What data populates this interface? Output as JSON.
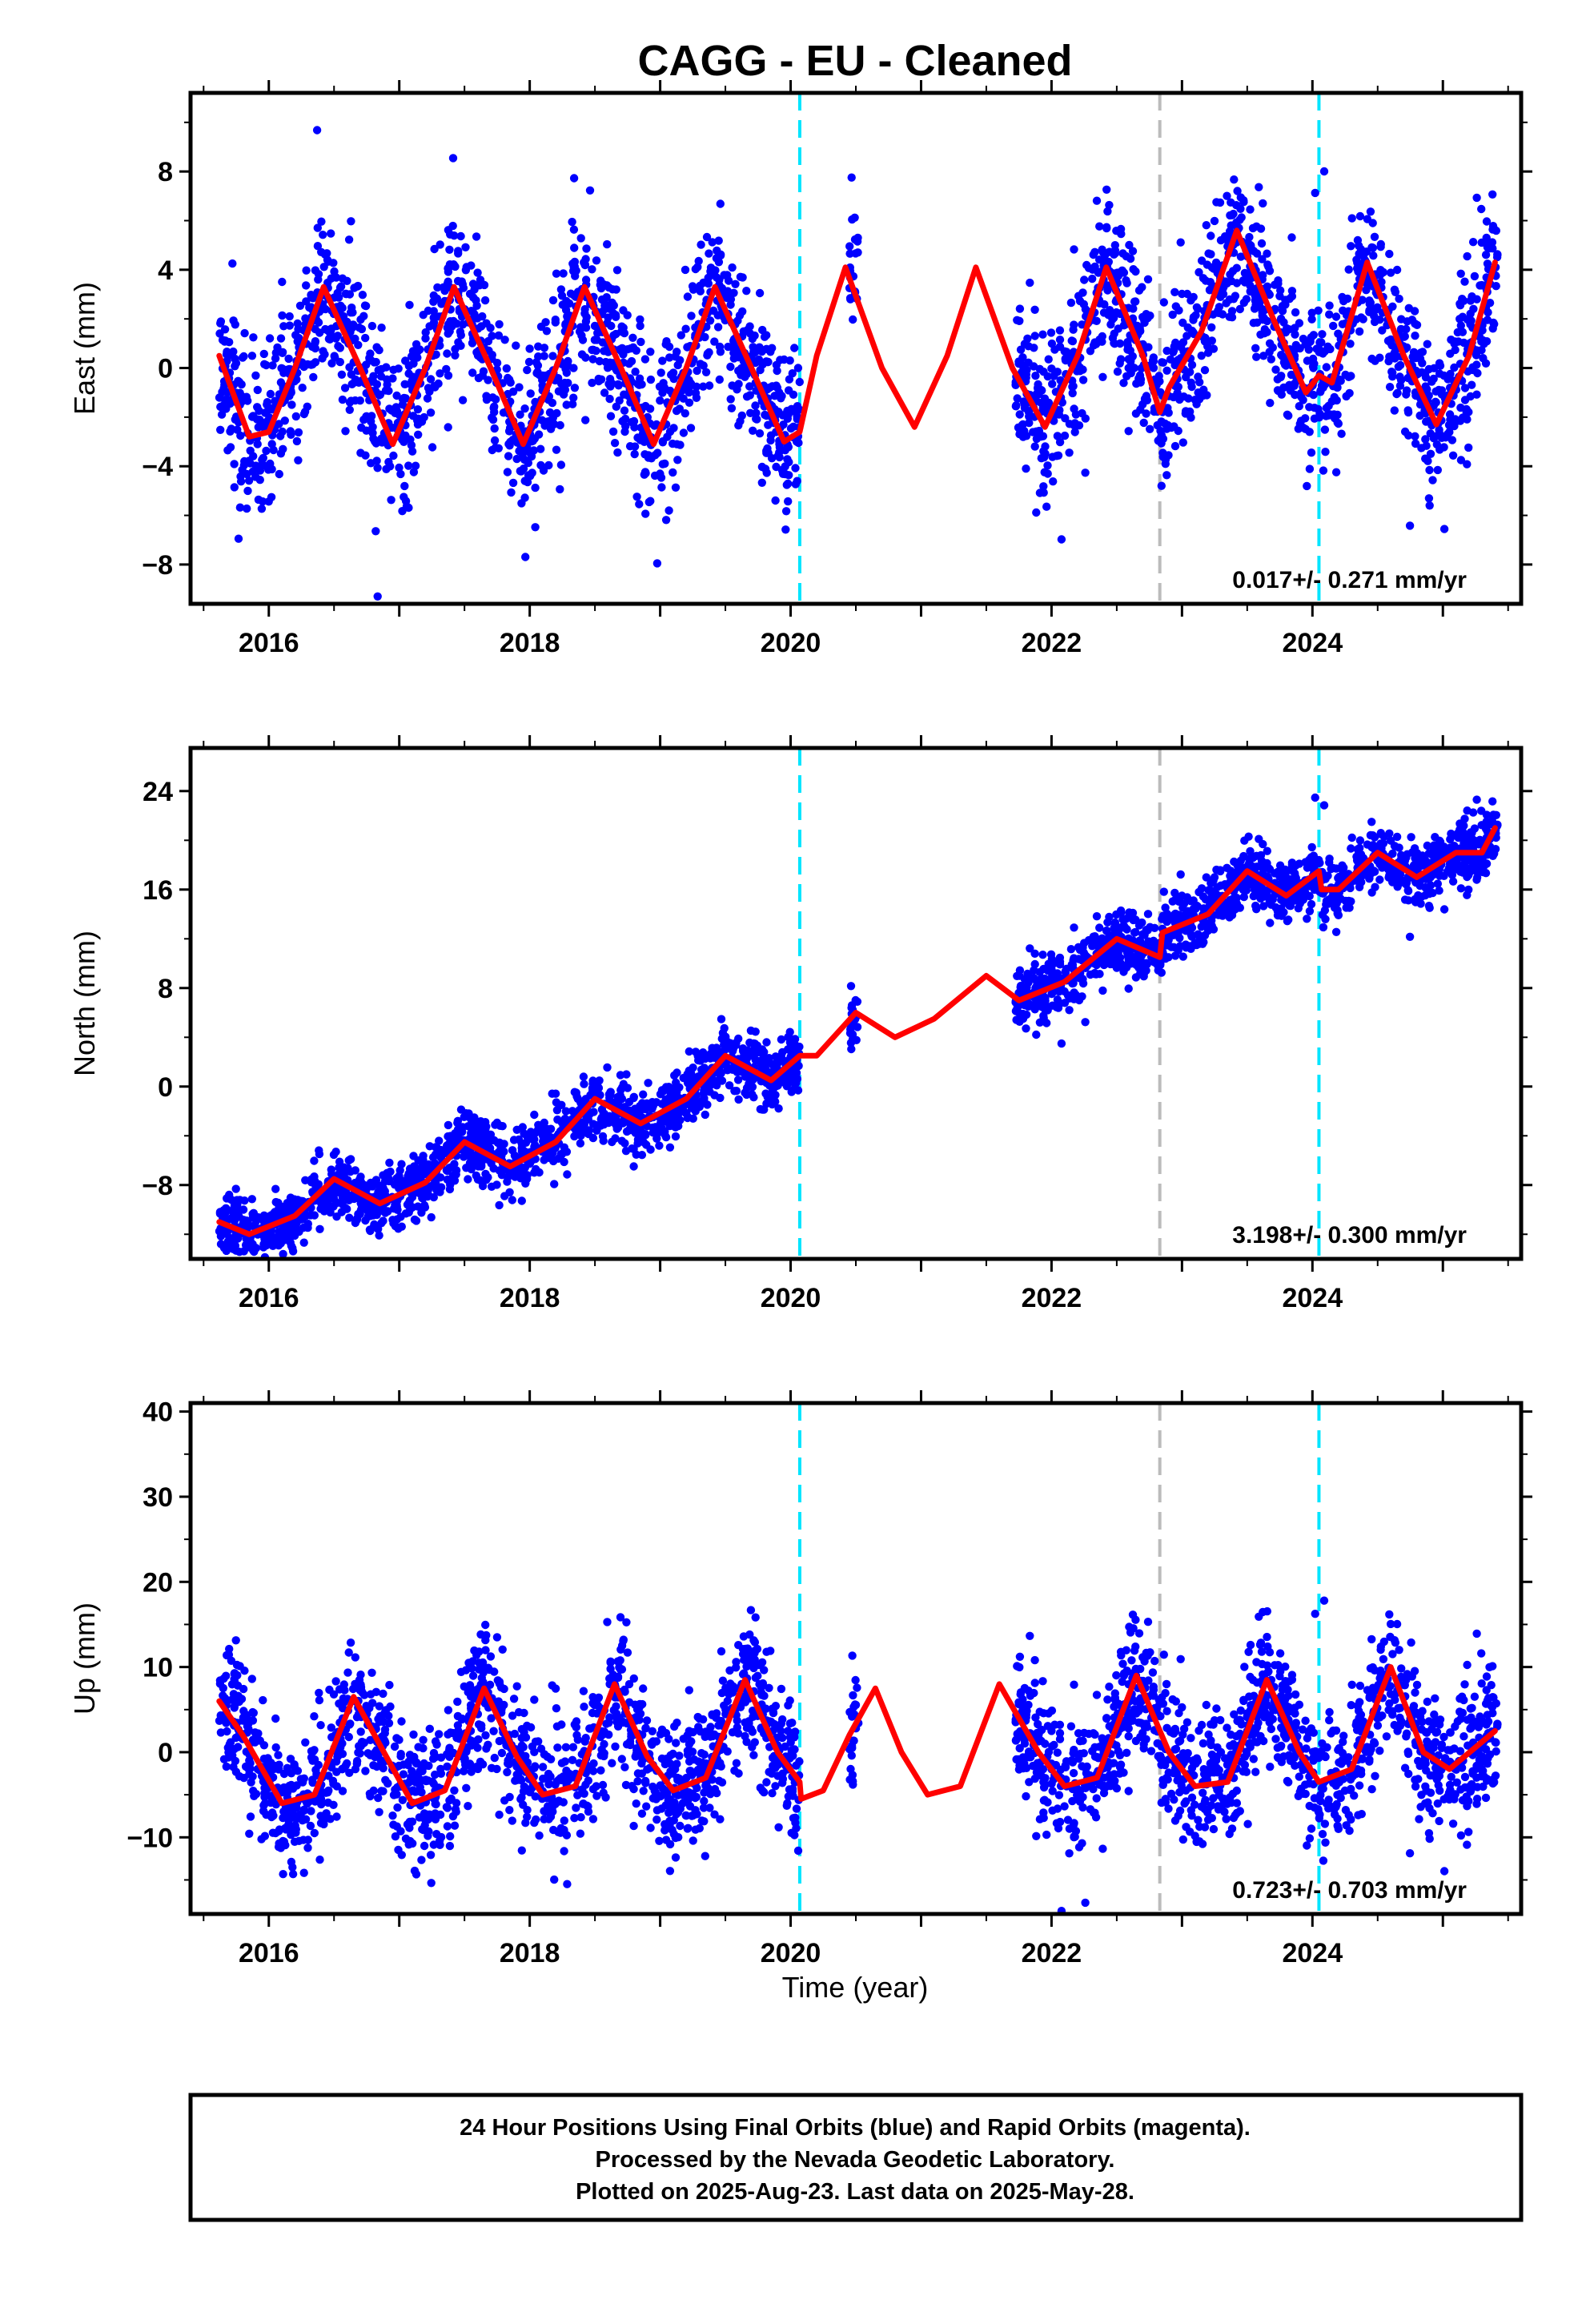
{
  "title": "CAGG  - EU - Cleaned",
  "xlabel": "Time (year)",
  "footer": {
    "lines": [
      "24 Hour Positions Using Final Orbits (blue) and Rapid Orbits (magenta).",
      "Processed by the Nevada Geodetic Laboratory.",
      "Plotted on 2025-Aug-23. Last data on 2025-May-28."
    ]
  },
  "colors": {
    "points": "#0000ff",
    "model": "#ff0000",
    "cyan_line": "#00e5ff",
    "grey_line": "#bbbbbb"
  },
  "chart_data": [
    {
      "type": "scatter",
      "component": "East",
      "ylabel": "East (mm)",
      "rate_text": "0.017+/- 0.271 mm/yr",
      "xlim": [
        2015.4,
        2025.6
      ],
      "ylim": [
        -9.6,
        11.2
      ],
      "yticks": [
        -8,
        -4,
        0,
        4,
        8
      ],
      "xticks": [
        2016,
        2018,
        2020,
        2022,
        2024
      ],
      "cyan_events": [
        2020.07,
        2024.05
      ],
      "grey_events": [
        2022.83
      ],
      "model": {
        "x": [
          2015.62,
          2015.85,
          2016.0,
          2016.2,
          2016.42,
          2016.7,
          2016.95,
          2017.2,
          2017.42,
          2017.7,
          2017.95,
          2018.2,
          2018.42,
          2018.7,
          2018.95,
          2019.2,
          2019.42,
          2019.7,
          2019.95,
          2020.07,
          2020.2,
          2020.42,
          2020.7,
          2020.95,
          2021.2,
          2021.42,
          2021.7,
          2021.95,
          2022.2,
          2022.42,
          2022.7,
          2022.83,
          2022.9,
          2023.15,
          2023.42,
          2023.7,
          2023.95,
          2024.05,
          2024.15,
          2024.42,
          2024.7,
          2024.95,
          2025.2,
          2025.4
        ],
        "y": [
          0.5,
          -2.8,
          -2.6,
          0.0,
          3.3,
          0.0,
          -3.1,
          0.0,
          3.3,
          0.0,
          -3.1,
          0.0,
          3.3,
          0.0,
          -3.1,
          0.0,
          3.3,
          0.0,
          -3.0,
          -2.6,
          0.5,
          4.1,
          0.0,
          -2.4,
          0.5,
          4.1,
          0.0,
          -2.4,
          0.5,
          4.1,
          0.5,
          -1.8,
          -0.8,
          1.5,
          5.6,
          2.0,
          -1.0,
          -0.3,
          -0.6,
          4.3,
          0.5,
          -2.3,
          0.5,
          4.3
        ]
      },
      "scatter": {
        "segments": [
          [
            2015.62,
            2020.07
          ],
          [
            2020.45,
            2020.52
          ],
          [
            2021.72,
            2025.42
          ]
        ],
        "amplitude": 3.2,
        "offset": 0.0,
        "trend": 0.0,
        "noise": 1.6,
        "step_after": 0.0
      }
    },
    {
      "type": "scatter",
      "component": "North",
      "ylabel": "North (mm)",
      "rate_text": "3.198+/- 0.300 mm/yr",
      "xlim": [
        2015.4,
        2025.6
      ],
      "ylim": [
        -14.0,
        27.5
      ],
      "yticks": [
        -8,
        0,
        8,
        16,
        24
      ],
      "xticks": [
        2016,
        2018,
        2020,
        2022,
        2024
      ],
      "cyan_events": [
        2020.07,
        2024.05
      ],
      "grey_events": [
        2022.83
      ],
      "model": {
        "x": [
          2015.62,
          2015.85,
          2016.2,
          2016.5,
          2016.85,
          2017.2,
          2017.5,
          2017.85,
          2018.2,
          2018.5,
          2018.85,
          2019.2,
          2019.5,
          2019.85,
          2020.07,
          2020.2,
          2020.5,
          2020.8,
          2021.1,
          2021.5,
          2021.75,
          2022.1,
          2022.5,
          2022.83,
          2022.85,
          2023.2,
          2023.5,
          2023.8,
          2024.05,
          2024.07,
          2024.2,
          2024.5,
          2024.8,
          2025.1,
          2025.3,
          2025.4
        ],
        "y": [
          -11.0,
          -12.0,
          -10.5,
          -7.5,
          -9.5,
          -7.8,
          -4.5,
          -6.5,
          -4.5,
          -1.0,
          -3.0,
          -1.0,
          2.5,
          0.5,
          2.5,
          2.5,
          6.0,
          4.0,
          5.5,
          9.0,
          7.0,
          8.5,
          12.0,
          10.5,
          12.5,
          14.0,
          17.5,
          15.5,
          17.5,
          16.0,
          16.0,
          19.0,
          17.0,
          19.0,
          19.0,
          21.0
        ]
      },
      "scatter": {
        "segments": [
          [
            2015.62,
            2020.07
          ],
          [
            2020.45,
            2020.52
          ],
          [
            2021.72,
            2025.42
          ]
        ],
        "amplitude": 1.6,
        "offset": -3.2,
        "trend": 3.198,
        "noise": 1.3,
        "step_after": 0.0
      }
    },
    {
      "type": "scatter",
      "component": "Up",
      "ylabel": "Up (mm)",
      "rate_text": "0.723+/- 0.703 mm/yr",
      "xlim": [
        2015.4,
        2025.6
      ],
      "ylim": [
        -19.0,
        41.0
      ],
      "yticks": [
        -10,
        0,
        10,
        20,
        30,
        40
      ],
      "xticks": [
        2016,
        2018,
        2020,
        2022,
        2024
      ],
      "cyan_events": [
        2020.07,
        2024.05
      ],
      "grey_events": [
        2022.83
      ],
      "model": {
        "x": [
          2015.62,
          2015.8,
          2016.1,
          2016.35,
          2016.65,
          2016.9,
          2017.1,
          2017.35,
          2017.65,
          2017.9,
          2018.1,
          2018.35,
          2018.65,
          2018.9,
          2019.1,
          2019.35,
          2019.65,
          2019.9,
          2020.07,
          2020.08,
          2020.25,
          2020.45,
          2020.65,
          2020.85,
          2021.05,
          2021.3,
          2021.6,
          2021.9,
          2022.1,
          2022.35,
          2022.65,
          2022.9,
          2023.1,
          2023.35,
          2023.65,
          2023.9,
          2024.05,
          2024.3,
          2024.6,
          2024.85,
          2025.05,
          2025.4
        ],
        "y": [
          6.0,
          2.0,
          -6.0,
          -5.0,
          6.5,
          -0.5,
          -6.0,
          -4.5,
          7.5,
          -0.5,
          -5.0,
          -4.0,
          8.0,
          -0.5,
          -4.5,
          -3.0,
          8.5,
          0.0,
          -3.5,
          -5.5,
          -4.5,
          2.0,
          7.5,
          0.0,
          -5.0,
          -4.0,
          8.0,
          0.0,
          -4.0,
          -3.0,
          9.0,
          0.0,
          -4.0,
          -3.5,
          8.5,
          0.0,
          -3.5,
          -2.0,
          10.0,
          0.0,
          -2.0,
          2.5
        ]
      },
      "scatter": {
        "segments": [
          [
            2015.62,
            2020.07
          ],
          [
            2020.45,
            2020.52
          ],
          [
            2021.72,
            2025.42
          ]
        ],
        "amplitude": 6.5,
        "offset": 0.5,
        "trend": 0.0,
        "noise": 4.0,
        "step_after": 0.0
      }
    }
  ]
}
